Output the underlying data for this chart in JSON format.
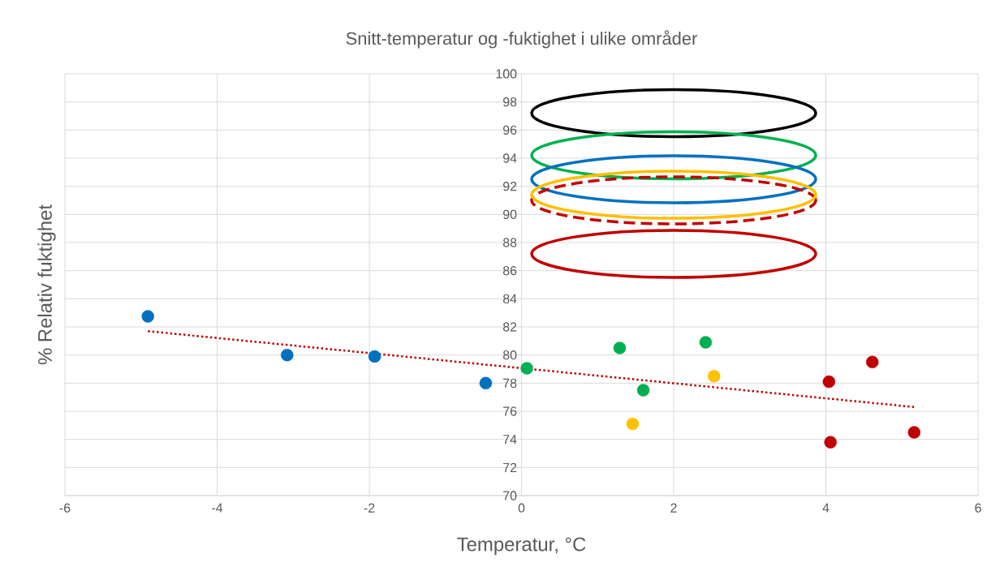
{
  "chart_data": {
    "type": "scatter",
    "title": "Snitt-temperatur og -fuktighet i ulike områder",
    "xlabel": "Temperatur, °C",
    "ylabel": "% Relativ fuktighet",
    "xlim": [
      -6,
      6
    ],
    "xticks": [
      -6,
      -4,
      -2,
      0,
      2,
      4,
      6
    ],
    "ylim": [
      70,
      100
    ],
    "yticks": [
      70,
      72,
      74,
      76,
      78,
      80,
      82,
      84,
      86,
      88,
      90,
      92,
      94,
      96,
      98,
      100
    ],
    "grid": true,
    "series": [
      {
        "color": "#0070c0",
        "marker": "circle",
        "x": [
          -4.91,
          -3.08,
          -1.93,
          -0.47
        ],
        "values": [
          82.75,
          80.0,
          79.9,
          78.0
        ]
      },
      {
        "color": "#00b050",
        "marker": "circle",
        "x": [
          0.07,
          1.29,
          1.6,
          2.42
        ],
        "values": [
          79.06,
          80.5,
          77.5,
          80.9
        ]
      },
      {
        "color": "#ffc000",
        "marker": "circle",
        "x": [
          1.46,
          2.53
        ],
        "values": [
          75.1,
          78.5
        ]
      },
      {
        "color": "#c00000",
        "marker": "circle",
        "x": [
          4.04,
          4.61,
          4.06,
          5.16
        ],
        "values": [
          78.1,
          79.5,
          73.8,
          74.5
        ]
      },
      {
        "type": "line",
        "color": "#c00000",
        "line_style": "dotted",
        "marker": "none",
        "x": [
          -4.91,
          5.16
        ],
        "values": [
          81.7,
          76.3
        ]
      }
    ]
  }
}
